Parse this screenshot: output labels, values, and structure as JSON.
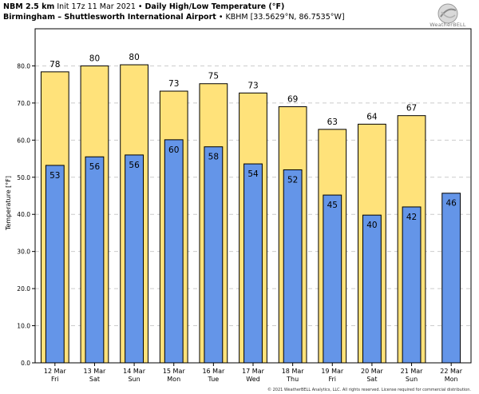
{
  "header": {
    "model": "NBM 2.5 km",
    "init": "Init 17z 11 Mar 2021",
    "bullet": "•",
    "title": "Daily High/Low Temperature (°F)",
    "station": "Birmingham – Shuttlesworth International Airport",
    "station_code": "KBHM [33.5629°N, 86.7535°W]"
  },
  "logo": {
    "text": "WeatherBELL",
    "icon": "globe-swirl-icon"
  },
  "footer": {
    "copyright": "© 2021 WeatherBELL Analytics, LLC. All rights reserved. License required for commercial distribution."
  },
  "colors": {
    "high": "#FFE27A",
    "low": "#6495E8",
    "grid": "#CCCCCC"
  },
  "chart_data": {
    "type": "bar",
    "ylabel": "Temperature [°F]",
    "ylim": [
      0,
      90
    ],
    "yticks": [
      "0.0",
      "10.0",
      "20.0",
      "30.0",
      "40.0",
      "50.0",
      "60.0",
      "70.0",
      "80.0"
    ],
    "grid": true,
    "categories": [
      [
        "12 Mar",
        "Fri"
      ],
      [
        "13 Mar",
        "Sat"
      ],
      [
        "14 Mar",
        "Sun"
      ],
      [
        "15 Mar",
        "Mon"
      ],
      [
        "16 Mar",
        "Tue"
      ],
      [
        "17 Mar",
        "Wed"
      ],
      [
        "18 Mar",
        "Thu"
      ],
      [
        "19 Mar",
        "Fri"
      ],
      [
        "20 Mar",
        "Sat"
      ],
      [
        "21 Mar",
        "Sun"
      ],
      [
        "22 Mar",
        "Mon"
      ]
    ],
    "series": [
      {
        "name": "High",
        "values": [
          78.4,
          80.0,
          80.3,
          73.2,
          75.2,
          72.7,
          69.0,
          62.9,
          64.3,
          66.6,
          null
        ],
        "labels": [
          "78",
          "80",
          "80",
          "73",
          "75",
          "73",
          "69",
          "63",
          "64",
          "67",
          null
        ]
      },
      {
        "name": "Low",
        "values": [
          53.2,
          55.5,
          56.0,
          60.1,
          58.2,
          53.6,
          52.0,
          45.2,
          39.8,
          42.0,
          45.7
        ],
        "labels": [
          "53",
          "56",
          "56",
          "60",
          "58",
          "54",
          "52",
          "45",
          "40",
          "42",
          "46"
        ]
      }
    ]
  }
}
